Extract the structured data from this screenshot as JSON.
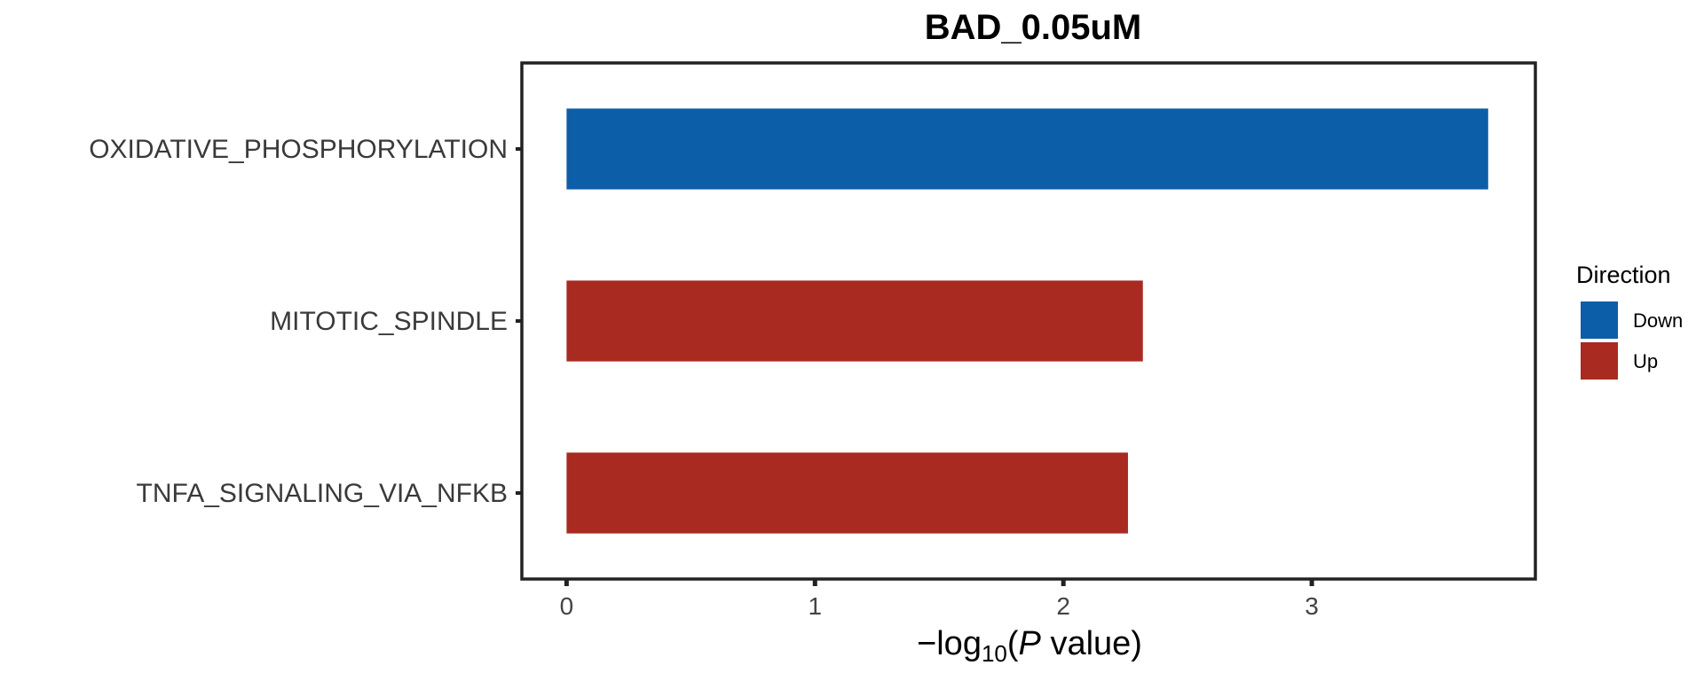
{
  "chart_data": {
    "type": "bar",
    "orientation": "horizontal",
    "title": "BAD_0.05uM",
    "categories": [
      "OXIDATIVE_PHOSPHORYLATION",
      "MITOTIC_SPINDLE",
      "TNFA_SIGNALING_VIA_NFKB"
    ],
    "values": [
      3.71,
      2.32,
      2.26
    ],
    "direction": [
      "Down",
      "Up",
      "Up"
    ],
    "xlabel": {
      "prefix": "−log",
      "subscript": "10",
      "open": "(",
      "italic": "P",
      "suffix": " value)"
    },
    "xlim": [
      -0.18,
      3.9
    ],
    "xticks": [
      0,
      1,
      2,
      3
    ],
    "xtick_labels": [
      "0",
      "1",
      "2",
      "3"
    ],
    "grid": false,
    "legend": {
      "title": "Direction",
      "placement": "right",
      "entries": [
        {
          "label": "Down",
          "color": "#0d5ea8"
        },
        {
          "label": "Up",
          "color": "#a92a21"
        }
      ]
    }
  }
}
